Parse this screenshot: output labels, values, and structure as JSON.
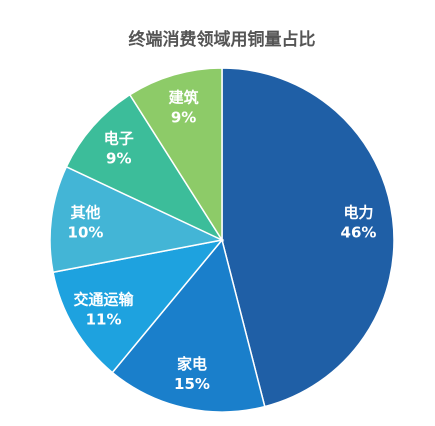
{
  "chart_data": {
    "type": "pie",
    "title": "终端消费领域用铜量占比",
    "categories": [
      "电力",
      "家电",
      "交通运输",
      "其他",
      "电子",
      "建筑"
    ],
    "values": [
      46,
      15,
      11,
      10,
      9,
      9
    ],
    "value_labels": [
      "46%",
      "15%",
      "11%",
      "10%",
      "9%",
      "9%"
    ],
    "colors": [
      "#1f5fa6",
      "#1a7fcb",
      "#1ea2df",
      "#43b5d6",
      "#3cbd9a",
      "#8dcb68"
    ]
  }
}
